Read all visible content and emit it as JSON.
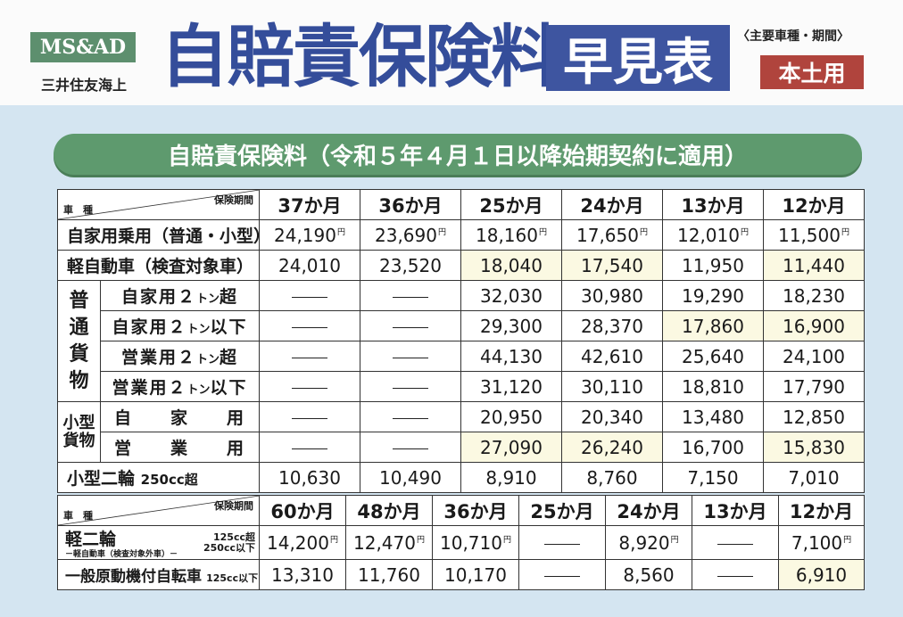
{
  "header": {
    "logo": "MS&AD",
    "company": "三井住友海上",
    "title": "自賠責保険料",
    "title_box": "早見表",
    "sub_note": "〈主要車種・期間〉",
    "region": "本土用"
  },
  "banner": "自賠責保険料（令和５年４月１日以降始期契約に適用）",
  "table1": {
    "corner_top": "保険期間",
    "corner_bottom": "車　種",
    "periods": [
      "37か月",
      "36か月",
      "25か月",
      "24か月",
      "13か月",
      "12か月"
    ],
    "yen_mark": "円",
    "rows": {
      "private_car": {
        "label": "自家用乗用（普通・小型）",
        "values": [
          "24,190",
          "23,690",
          "18,160",
          "17,650",
          "12,010",
          "11,500"
        ]
      },
      "kei_car": {
        "label": "軽自動車（検査対象車）",
        "values": [
          "24,010",
          "23,520",
          "18,040",
          "17,540",
          "11,950",
          "11,440"
        ]
      },
      "truck_group": {
        "label": [
          "普",
          "通",
          "貨",
          "物"
        ]
      },
      "truck_private_over2t": {
        "label_a": "自家用２",
        "label_t": "トン",
        "label_b": "超",
        "values": [
          "",
          "",
          "32,030",
          "30,980",
          "19,290",
          "18,230"
        ]
      },
      "truck_private_under2t": {
        "label_a": "自家用２",
        "label_t": "トン",
        "label_b": "以下",
        "values": [
          "",
          "",
          "29,300",
          "28,370",
          "17,860",
          "16,900"
        ]
      },
      "truck_business_over2t": {
        "label_a": "営業用２",
        "label_t": "トン",
        "label_b": "超",
        "values": [
          "",
          "",
          "44,130",
          "42,610",
          "25,640",
          "24,100"
        ]
      },
      "truck_business_under2t": {
        "label_a": "営業用２",
        "label_t": "トン",
        "label_b": "以下",
        "values": [
          "",
          "",
          "31,120",
          "30,110",
          "18,810",
          "17,790"
        ]
      },
      "small_truck_group": {
        "label": [
          "小",
          "型",
          "貨",
          "物"
        ]
      },
      "small_truck_private": {
        "label": "自　　家　　用",
        "values": [
          "",
          "",
          "20,950",
          "20,340",
          "13,480",
          "12,850"
        ]
      },
      "small_truck_business": {
        "label": "営　　業　　用",
        "values": [
          "",
          "",
          "27,090",
          "26,240",
          "16,700",
          "15,830"
        ]
      },
      "small_motorcycle": {
        "label": "小型二輪",
        "label_cc": "250cc超",
        "values": [
          "10,630",
          "10,490",
          "8,910",
          "8,760",
          "7,150",
          "7,010"
        ]
      }
    }
  },
  "table2": {
    "corner_top": "保険期間",
    "corner_bottom": "車　種",
    "periods": [
      "60か月",
      "48か月",
      "36か月",
      "25か月",
      "24か月",
      "13か月",
      "12か月"
    ],
    "yen_mark": "円",
    "rows": {
      "light_two_wheel": {
        "label": "軽二輪",
        "label_sub": "－軽自動車（検査対象外車）－",
        "cc_top": "125cc超",
        "cc_bottom": "250cc以下",
        "values": [
          "14,200",
          "12,470",
          "10,710",
          "",
          "8,920",
          "",
          "7,100"
        ]
      },
      "moped": {
        "label": "一般原動機付自転車",
        "label_cc": "125cc以下",
        "values": [
          "13,310",
          "11,760",
          "10,170",
          "",
          "8,560",
          "",
          "6,910"
        ]
      }
    }
  }
}
